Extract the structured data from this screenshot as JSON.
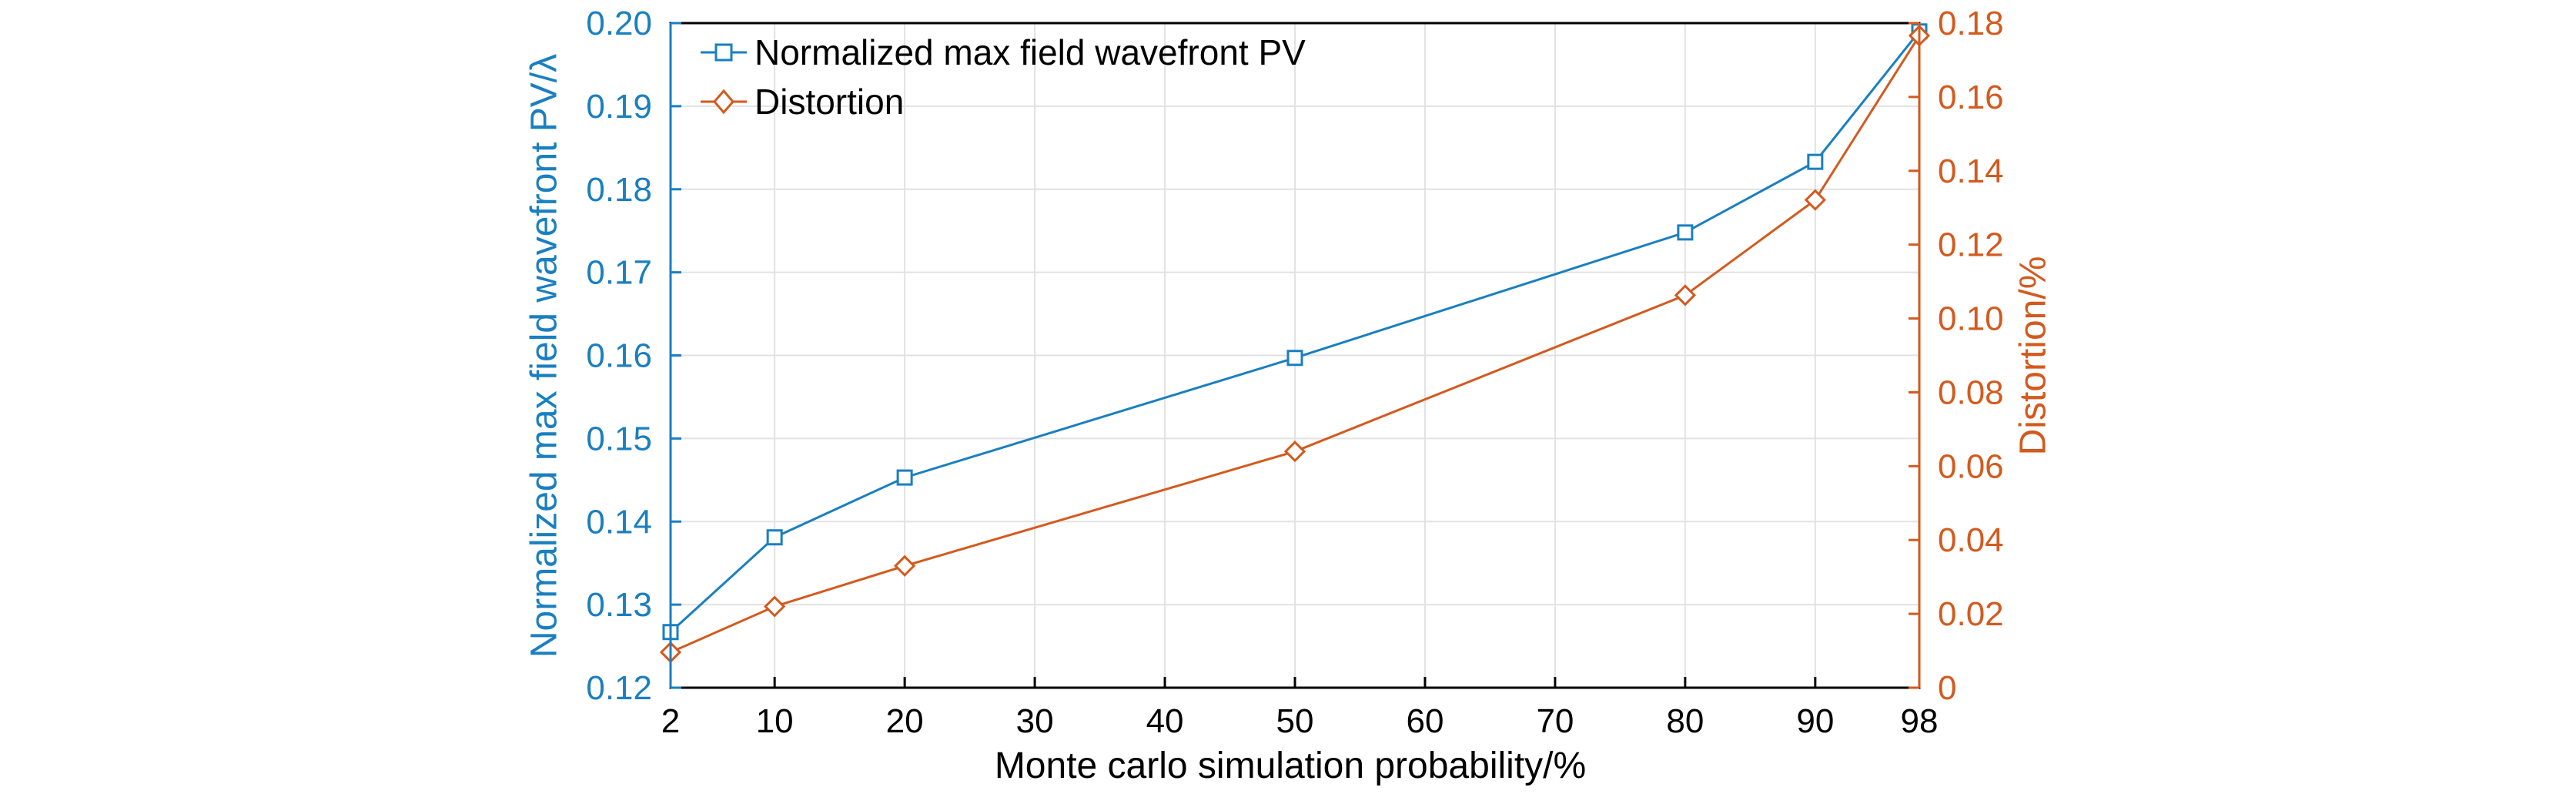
{
  "chart_data": {
    "type": "line",
    "xlabel": "Monte carlo simulation probability/%",
    "x_ticks": [
      2,
      10,
      20,
      30,
      40,
      50,
      60,
      70,
      80,
      90,
      98
    ],
    "xlim": [
      2,
      98
    ],
    "grid": true,
    "legend_position": "top-left",
    "left_axis": {
      "label": "Normalized max field wavefront PV/λ",
      "ylim": [
        0.12,
        0.2
      ],
      "ticks": [
        "0.12",
        "0.13",
        "0.14",
        "0.15",
        "0.16",
        "0.17",
        "0.18",
        "0.19",
        "0.20"
      ],
      "color": "#1a7fc0"
    },
    "right_axis": {
      "label": "Distortion/%",
      "ylim": [
        0,
        0.18
      ],
      "ticks": [
        "0",
        "0.02",
        "0.04",
        "0.06",
        "0.08",
        "0.10",
        "0.12",
        "0.14",
        "0.16",
        "0.18"
      ],
      "color": "#d35a1e"
    },
    "series": [
      {
        "name": "Normalized max field wavefront PV",
        "axis": "left",
        "marker": "square",
        "color": "#1a7fc0",
        "x": [
          2,
          10,
          20,
          50,
          80,
          90,
          98
        ],
        "y": [
          0.1267,
          0.1381,
          0.1453,
          0.1597,
          0.1748,
          0.1833,
          0.199
        ]
      },
      {
        "name": "Distortion",
        "axis": "right",
        "marker": "diamond",
        "color": "#d35a1e",
        "x": [
          2,
          10,
          20,
          50,
          80,
          90,
          98
        ],
        "y": [
          0.0096,
          0.022,
          0.033,
          0.064,
          0.1063,
          0.1321,
          0.1766
        ]
      }
    ]
  }
}
